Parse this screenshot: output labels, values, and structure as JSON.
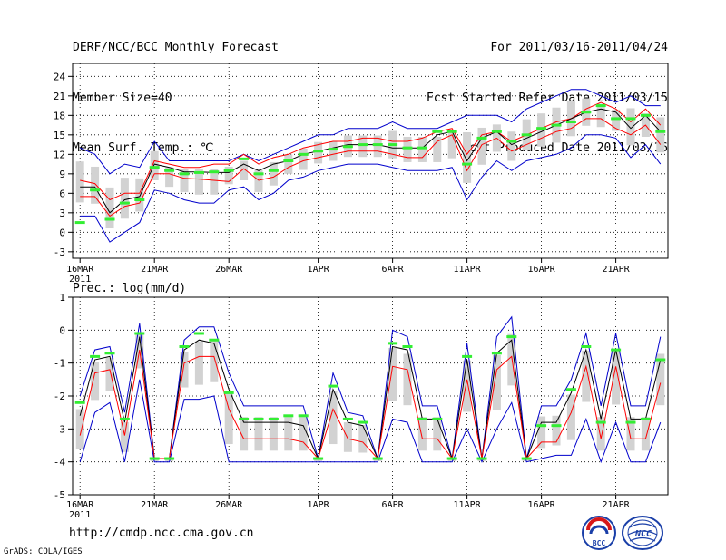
{
  "header": {
    "title": "DERF/NCC/BCC Monthly Forecast",
    "member_size": "Member Size=40",
    "variable": "Mean Surf. Temp.: ℃",
    "period": "For 2011/03/16-2011/04/24",
    "start_date": "Fcst Started Refer Date 2011/03/15",
    "produced_date": "Fcst Produced Date 2011/03/16"
  },
  "footer": {
    "url": "http://cmdp.ncc.cma.gov.cn",
    "credit": "GrADS: COLA/IGES"
  },
  "logos": {
    "bcc": "BCC",
    "ncc": "NCC"
  },
  "colors": {
    "ensemble_mean": "#000000",
    "spread": "#ff0000",
    "extreme": "#0000cc",
    "box": "#d2d2d2",
    "median": "#33ee33",
    "grid": "#000000"
  },
  "chart_data": [
    {
      "type": "line",
      "name": "temperature",
      "title": "",
      "ylabel": "Mean Surf. Temp.: ℃",
      "xlabel": "",
      "ylim": [
        -4,
        26
      ],
      "yticks": [
        -3,
        0,
        3,
        6,
        9,
        12,
        15,
        18,
        21,
        24
      ],
      "grid": true,
      "x": [
        1,
        2,
        3,
        4,
        5,
        6,
        7,
        8,
        9,
        10,
        11,
        12,
        13,
        14,
        15,
        16,
        17,
        18,
        19,
        20,
        21,
        22,
        23,
        24,
        25,
        26,
        27,
        28,
        29,
        30,
        31,
        32,
        33,
        34,
        35,
        36,
        37,
        38,
        39,
        40
      ],
      "xticks": [
        {
          "day": 1,
          "label": "16MAR",
          "sub": "2011"
        },
        {
          "day": 6,
          "label": "21MAR"
        },
        {
          "day": 11,
          "label": "26MAR"
        },
        {
          "day": 17,
          "label": "1APR"
        },
        {
          "day": 22,
          "label": "6APR"
        },
        {
          "day": 27,
          "label": "11APR"
        },
        {
          "day": 32,
          "label": "16APR"
        },
        {
          "day": 37,
          "label": "21APR"
        }
      ],
      "series": [
        {
          "name": "max",
          "color": "#0000cc",
          "values": [
            13,
            12,
            9,
            10.5,
            10,
            14,
            11,
            11,
            11,
            11,
            11,
            12,
            11,
            12,
            13,
            14,
            15,
            15,
            16,
            16,
            16,
            17,
            16,
            16,
            16,
            17,
            18,
            18,
            18,
            17,
            19,
            20,
            21,
            22,
            22,
            21,
            20,
            21,
            19.5,
            19.5
          ]
        },
        {
          "name": "upper",
          "color": "#ff0000",
          "values": [
            8,
            7.5,
            5,
            6,
            6,
            11,
            10.5,
            10,
            10,
            10.5,
            10.5,
            12,
            10.5,
            11.5,
            12,
            13,
            13.5,
            14,
            14,
            14.5,
            14.5,
            14,
            14,
            14.5,
            15.5,
            16,
            12,
            15,
            15.5,
            14,
            15,
            16,
            17,
            17.5,
            19,
            20,
            19,
            17,
            19,
            16.5
          ]
        },
        {
          "name": "mean",
          "color": "#000000",
          "values": [
            7,
            7,
            3,
            5,
            5.5,
            10.5,
            10,
            9.3,
            9.3,
            9.2,
            9.2,
            10.5,
            9.5,
            10.5,
            11,
            12,
            12.5,
            13,
            13.5,
            13.5,
            13.5,
            13,
            13,
            13,
            15,
            15.5,
            11,
            14.5,
            15.5,
            13.5,
            14.5,
            15.5,
            16.5,
            17.5,
            18.5,
            19,
            18.5,
            16,
            18,
            15.5
          ]
        },
        {
          "name": "lower",
          "color": "#ff0000",
          "values": [
            5.5,
            5.5,
            2.5,
            4,
            4.5,
            9,
            9,
            8.3,
            8.2,
            8,
            7.8,
            9.8,
            8,
            8.5,
            10,
            11,
            11.5,
            12,
            12.5,
            12.5,
            12.5,
            12,
            11.5,
            11.5,
            14,
            15,
            9.5,
            13.5,
            14.5,
            12.5,
            13.5,
            14.5,
            15.5,
            16,
            17.5,
            17.5,
            16,
            15,
            16.5,
            13.5
          ]
        },
        {
          "name": "min",
          "color": "#0000cc",
          "values": [
            2.5,
            2.5,
            -1.5,
            0,
            1.5,
            6.5,
            6,
            5,
            4.5,
            4.5,
            6.5,
            7,
            5,
            6,
            8,
            8.5,
            9.5,
            10,
            10.5,
            10.5,
            10.5,
            10,
            9.5,
            9.5,
            9.5,
            10,
            5,
            8.5,
            11,
            9.5,
            11,
            11.5,
            12,
            13,
            15,
            15,
            14.5,
            11.5,
            13.5,
            10.5
          ]
        },
        {
          "name": "median",
          "color": "#33ee33",
          "values": [
            1.5,
            6.5,
            2,
            4.5,
            5,
            10,
            9.5,
            9,
            9.2,
            9.3,
            9.5,
            11.3,
            9,
            9.5,
            11,
            12,
            12.5,
            12.8,
            13.2,
            13.5,
            13.5,
            13.5,
            13,
            13,
            15.5,
            15.5,
            10.5,
            14.5,
            15.5,
            14,
            15,
            16,
            16.5,
            17,
            18.5,
            19.5,
            17.5,
            17.5,
            18,
            15.5
          ]
        }
      ]
    },
    {
      "type": "line",
      "name": "precipitation",
      "title": "",
      "ylabel": "Prec.: log(mm/d)",
      "xlabel": "",
      "ylim": [
        -5,
        1
      ],
      "yticks": [
        -5,
        -4,
        -3,
        -2,
        -1,
        0,
        1
      ],
      "grid": true,
      "x": [
        1,
        2,
        3,
        4,
        5,
        6,
        7,
        8,
        9,
        10,
        11,
        12,
        13,
        14,
        15,
        16,
        17,
        18,
        19,
        20,
        21,
        22,
        23,
        24,
        25,
        26,
        27,
        28,
        29,
        30,
        31,
        32,
        33,
        34,
        35,
        36,
        37,
        38,
        39,
        40
      ],
      "xticks": [
        {
          "day": 1,
          "label": "16MAR",
          "sub": "2011"
        },
        {
          "day": 6,
          "label": "21MAR"
        },
        {
          "day": 11,
          "label": "26MAR"
        },
        {
          "day": 17,
          "label": "1APR"
        },
        {
          "day": 22,
          "label": "6APR"
        },
        {
          "day": 27,
          "label": "11APR"
        },
        {
          "day": 32,
          "label": "16APR"
        },
        {
          "day": 37,
          "label": "21APR"
        }
      ],
      "series": [
        {
          "name": "max",
          "color": "#0000cc",
          "values": [
            -2,
            -0.6,
            -0.5,
            -2.5,
            0.2,
            -3.9,
            -3.9,
            -0.3,
            0.1,
            0.1,
            -1.3,
            -2.3,
            -2.3,
            -2.3,
            -2.3,
            -2.3,
            -3.9,
            -1.3,
            -2.5,
            -2.6,
            -3.9,
            0,
            -0.2,
            -2.3,
            -2.3,
            -3.9,
            -0.4,
            -3.9,
            -0.2,
            0.4,
            -3.9,
            -2.3,
            -2.3,
            -1.5,
            -0.1,
            -2.3,
            -0.1,
            -2.3,
            -2.3,
            -0.2
          ]
        },
        {
          "name": "upper",
          "color": "#000000",
          "values": [
            -2.6,
            -0.9,
            -0.8,
            -2.8,
            -0.2,
            -3.9,
            -3.9,
            -0.6,
            -0.3,
            -0.4,
            -1.8,
            -2.8,
            -2.8,
            -2.8,
            -2.8,
            -2.9,
            -3.9,
            -1.8,
            -2.8,
            -2.9,
            -3.9,
            -0.5,
            -0.6,
            -2.7,
            -2.7,
            -3.9,
            -0.9,
            -3.9,
            -0.7,
            -0.3,
            -3.9,
            -2.8,
            -2.8,
            -1.9,
            -0.6,
            -2.7,
            -0.6,
            -2.7,
            -2.7,
            -0.9
          ]
        },
        {
          "name": "lower",
          "color": "#ff0000",
          "values": [
            -3.2,
            -1.3,
            -1.2,
            -3.2,
            -0.6,
            -3.9,
            -3.9,
            -1,
            -0.8,
            -0.8,
            -2.4,
            -3.3,
            -3.3,
            -3.3,
            -3.3,
            -3.4,
            -3.9,
            -2.4,
            -3.3,
            -3.4,
            -3.9,
            -1.1,
            -1.2,
            -3.3,
            -3.3,
            -3.9,
            -1.5,
            -3.9,
            -1.2,
            -0.8,
            -3.9,
            -3.4,
            -3.4,
            -2.5,
            -1.1,
            -3.3,
            -1.1,
            -3.3,
            -3.3,
            -1.6
          ]
        },
        {
          "name": "min",
          "color": "#0000cc",
          "values": [
            -4,
            -2.5,
            -2.2,
            -4,
            -1.5,
            -4,
            -4,
            -2.1,
            -2.1,
            -2,
            -4,
            -4,
            -4,
            -4,
            -4,
            -4,
            -4,
            -4,
            -4,
            -4,
            -4,
            -2.7,
            -2.8,
            -4,
            -4,
            -4,
            -3,
            -4,
            -3,
            -2.2,
            -4,
            -3.9,
            -3.8,
            -3.8,
            -2.7,
            -4,
            -2.8,
            -4,
            -4,
            -2.8
          ]
        },
        {
          "name": "median",
          "color": "#33ee33",
          "values": [
            -2.2,
            -0.8,
            -0.7,
            -2.7,
            -0.1,
            -3.9,
            -3.9,
            -0.5,
            -0.1,
            -0.3,
            -1.9,
            -2.7,
            -2.7,
            -2.7,
            -2.6,
            -2.6,
            -3.9,
            -1.7,
            -2.7,
            -2.8,
            -3.9,
            -0.4,
            -0.5,
            -2.7,
            -2.7,
            -3.9,
            -0.8,
            -3.9,
            -0.7,
            -0.2,
            -3.9,
            -2.9,
            -2.9,
            -1.8,
            -0.5,
            -2.8,
            -0.6,
            -2.8,
            -2.7,
            -0.9
          ]
        }
      ]
    }
  ]
}
